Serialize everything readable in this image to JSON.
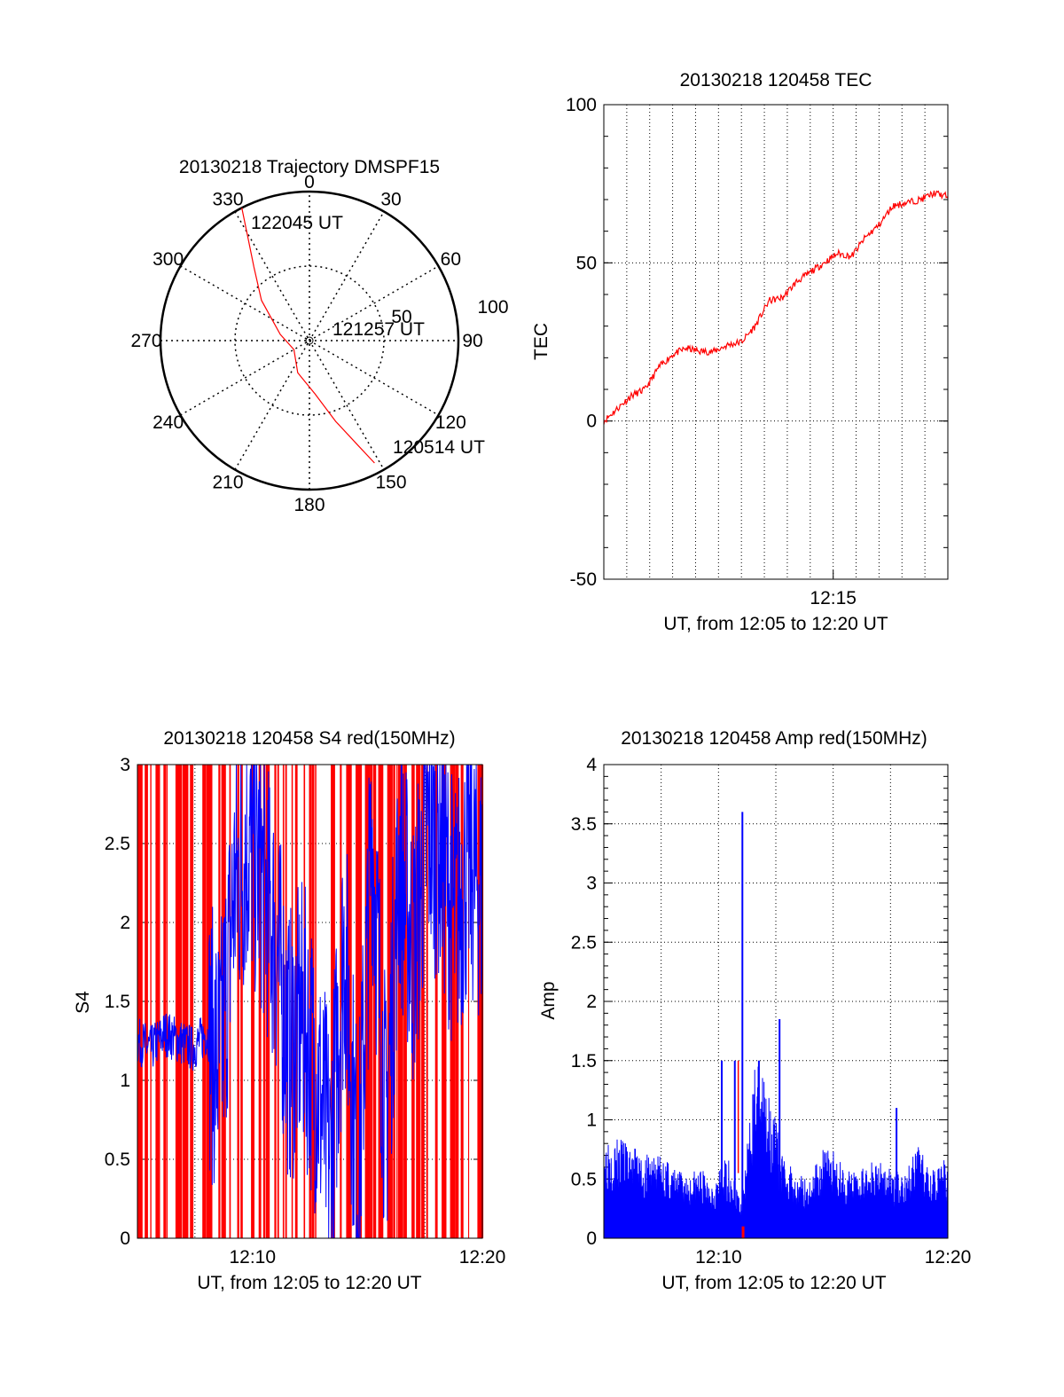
{
  "colors": {
    "series_main": "#ff0000",
    "series_overlay": "#0000ff",
    "axis": "#000000",
    "grid": "#000000",
    "background": "#ffffff"
  },
  "chart_data": [
    {
      "id": "trajectory",
      "type": "polar",
      "title": "20130218 Trajectory DMSPF15",
      "angle_labels": [
        "0",
        "30",
        "60",
        "90",
        "120",
        "150",
        "180",
        "210",
        "240",
        "270",
        "300",
        "330"
      ],
      "radial_labels": [
        "50",
        "100"
      ],
      "radial_max": 100,
      "grid": true,
      "track": [
        {
          "azimuth": 333,
          "elevation": 0
        },
        {
          "azimuth": 329,
          "elevation": 20
        },
        {
          "azimuth": 323,
          "elevation": 38
        },
        {
          "azimuth": 310,
          "elevation": 58
        },
        {
          "azimuth": 282,
          "elevation": 80
        },
        {
          "azimuth": 240,
          "elevation": 88
        },
        {
          "azimuth": 200,
          "elevation": 77
        },
        {
          "azimuth": 174,
          "elevation": 64
        },
        {
          "azimuth": 162,
          "elevation": 43
        },
        {
          "azimuth": 155,
          "elevation": 22
        },
        {
          "azimuth": 152,
          "elevation": 7
        }
      ],
      "annotations": [
        "122045 UT",
        "121257 UT",
        "120514 UT"
      ]
    },
    {
      "id": "tec",
      "type": "line",
      "title": "20130218 120458 TEC",
      "xlabel": "UT, from 12:05 to 12:20 UT",
      "ylabel": "TEC",
      "xlim": [
        12.0833,
        12.3333
      ],
      "ylim": [
        -50,
        100
      ],
      "yticks": [
        "-50",
        "0",
        "50",
        "100"
      ],
      "xticks": [
        "12:15"
      ],
      "xtick_values": [
        12.25
      ],
      "grid": true,
      "series": [
        {
          "x": [
            12.0833,
            12.0933,
            12.1033,
            12.1133,
            12.1233,
            12.1333,
            12.1433,
            12.1533,
            12.1633,
            12.1733,
            12.1833,
            12.1933,
            12.2033,
            12.2133,
            12.2233,
            12.2333,
            12.2433,
            12.2533,
            12.2633,
            12.2733,
            12.2833,
            12.2933,
            12.3033,
            12.3133,
            12.3233,
            12.3333
          ],
          "values": [
            0,
            4,
            8,
            10,
            17,
            21,
            23,
            22,
            22,
            24,
            25,
            30,
            38,
            39,
            44,
            47,
            50,
            53,
            52,
            58,
            62,
            68,
            69,
            70,
            72,
            71
          ]
        }
      ]
    },
    {
      "id": "s4",
      "type": "line",
      "title": "20130218 120458 S4 red(150MHz)",
      "xlabel": "UT, from 12:05 to 12:20 UT",
      "ylabel": "S4",
      "xlim": [
        12.0833,
        12.3333
      ],
      "ylim": [
        0,
        3
      ],
      "yticks": [
        "0",
        "0.5",
        "1",
        "1.5",
        "2",
        "2.5",
        "3"
      ],
      "xticks": [
        "12:10",
        "12:20"
      ],
      "xtick_values": [
        12.1667,
        12.3333
      ],
      "grid": true,
      "series": [
        {
          "x": [
            12.0833,
            12.0933,
            12.1033,
            12.1133,
            12.1233,
            12.1333,
            12.1433,
            12.1533,
            12.1633,
            12.1733,
            12.1833,
            12.1933,
            12.2033,
            12.2133,
            12.2233,
            12.2333,
            12.2433,
            12.2533,
            12.2633,
            12.2733,
            12.2833,
            12.2933,
            12.3033,
            12.3133,
            12.3233,
            12.3333
          ],
          "values": [
            1.25,
            1.2,
            1.3,
            1.25,
            1.2,
            1.3,
            1.1,
            2.2,
            2.5,
            2.3,
            1.9,
            1.2,
            1.4,
            1.0,
            0.5,
            1.9,
            0.3,
            2.6,
            0.7,
            2.4,
            1.8,
            2.6,
            2.5,
            2.0,
            2.4,
            2.2
          ]
        }
      ]
    },
    {
      "id": "amp",
      "type": "area",
      "title": "20130218 120458 Amp red(150MHz)",
      "xlabel": "UT, from 12:05 to 12:20 UT",
      "ylabel": "Amp",
      "xlim": [
        12.0833,
        12.3333
      ],
      "ylim": [
        0,
        4
      ],
      "yticks": [
        "0",
        "0.5",
        "1",
        "1.5",
        "2",
        "2.5",
        "3",
        "3.5",
        "4"
      ],
      "xticks": [
        "12:10",
        "12:20"
      ],
      "xtick_values": [
        12.1667,
        12.3333
      ],
      "grid": true,
      "series": [
        {
          "x": [
            12.0833,
            12.0933,
            12.1033,
            12.1133,
            12.1233,
            12.1333,
            12.1433,
            12.1533,
            12.1633,
            12.1733,
            12.1833,
            12.1933,
            12.2033,
            12.2133,
            12.2233,
            12.2333,
            12.2433,
            12.2533,
            12.2633,
            12.2733,
            12.2833,
            12.2933,
            12.3033,
            12.3133,
            12.3233,
            12.3333
          ],
          "values": [
            0.9,
            0.85,
            0.8,
            0.7,
            0.75,
            0.6,
            0.55,
            0.6,
            0.5,
            0.7,
            0.3,
            1.5,
            1.3,
            0.7,
            0.55,
            0.5,
            0.8,
            0.7,
            0.55,
            0.6,
            0.7,
            0.55,
            0.6,
            0.8,
            0.65,
            0.7
          ]
        }
      ],
      "spikes": [
        {
          "x": 12.169,
          "value": 1.5
        },
        {
          "x": 12.1785,
          "value": 1.5
        },
        {
          "x": 12.184,
          "value": 3.6
        },
        {
          "x": 12.196,
          "value": 1.5
        },
        {
          "x": 12.211,
          "value": 1.85
        },
        {
          "x": 12.296,
          "value": 1.1
        }
      ]
    }
  ]
}
